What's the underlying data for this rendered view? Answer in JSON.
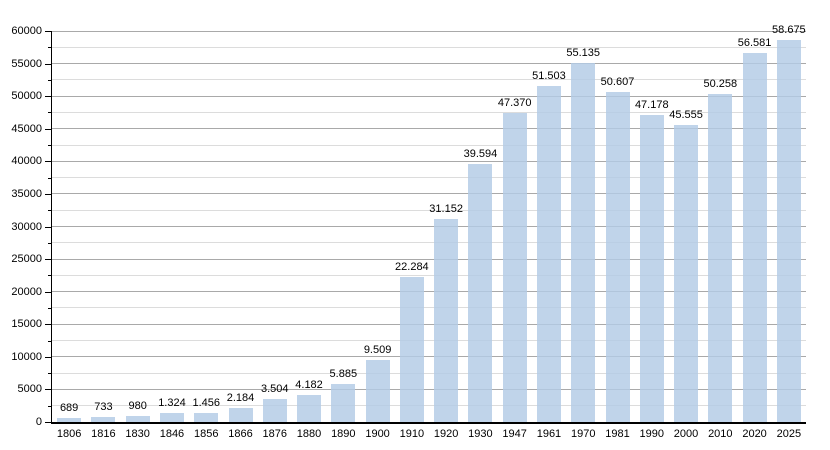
{
  "chart_data": {
    "type": "bar",
    "categories": [
      "1806",
      "1816",
      "1830",
      "1846",
      "1856",
      "1866",
      "1876",
      "1880",
      "1890",
      "1900",
      "1910",
      "1920",
      "1930",
      "1947",
      "1961",
      "1970",
      "1981",
      "1990",
      "2000",
      "2010",
      "2020",
      "2025"
    ],
    "values": [
      689,
      733,
      980,
      1324,
      1456,
      2184,
      3504,
      4182,
      5885,
      9509,
      22284,
      31152,
      39594,
      47370,
      51503,
      55135,
      50607,
      47178,
      45555,
      50258,
      56581,
      58675
    ],
    "value_labels": [
      "689",
      "733",
      "980",
      "1.324",
      "1.456",
      "2.184",
      "3.504",
      "4.182",
      "5.885",
      "9.509",
      "22.284",
      "31.152",
      "39.594",
      "47.370",
      "51.503",
      "55.135",
      "50.607",
      "47.178",
      "45.555",
      "50.258",
      "56.581",
      "58.675"
    ],
    "title": "",
    "xlabel": "",
    "ylabel": "",
    "ylim": [
      0,
      60000
    ],
    "y_major_step": 5000,
    "y_minor_step": 2500,
    "y_tick_labels": [
      "0",
      "5000",
      "10000",
      "15000",
      "20000",
      "25000",
      "30000",
      "35000",
      "40000",
      "45000",
      "50000",
      "55000",
      "60000"
    ],
    "grid": true,
    "legend_position": "none",
    "colors": {
      "bar_fill": "#b2cbe5",
      "axis": "#000000",
      "major_grid": "#a9a9a9",
      "minor_grid": "#dcdcdc",
      "text": "#000000",
      "background": "#ffffff"
    }
  }
}
